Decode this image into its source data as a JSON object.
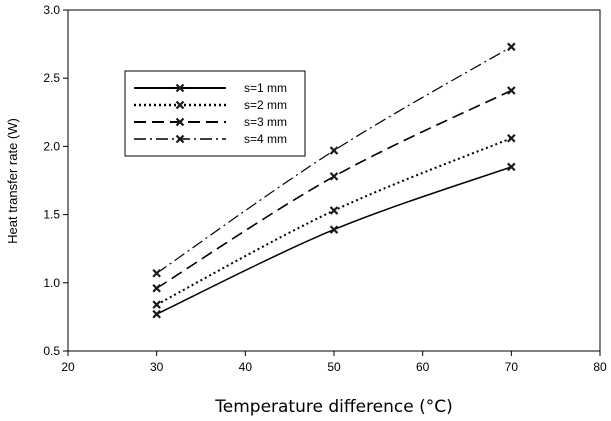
{
  "chart_data": {
    "type": "line",
    "title": "",
    "xlabel": "Temperature difference (°C)",
    "ylabel": "Heat transfer rate (W)",
    "xlim": [
      20,
      80
    ],
    "ylim": [
      0.5,
      3.0
    ],
    "xticks": [
      20,
      30,
      40,
      50,
      60,
      70,
      80
    ],
    "yticks": [
      0.5,
      1.0,
      1.5,
      2.0,
      2.5,
      3.0
    ],
    "xtick_labels": [
      "20",
      "30",
      "40",
      "50",
      "60",
      "70",
      "80"
    ],
    "ytick_labels": [
      "0.5",
      "1.0",
      "1.5",
      "2.0",
      "2.5",
      "3.0"
    ],
    "grid": false,
    "legend_position": "top-left",
    "marker": "x",
    "x": [
      30,
      50,
      70
    ],
    "series": [
      {
        "name": "s=1 mm",
        "values": [
          0.77,
          1.39,
          1.85
        ],
        "dash": "solid"
      },
      {
        "name": "s=2 mm",
        "values": [
          0.84,
          1.53,
          2.06
        ],
        "dash": "dotted"
      },
      {
        "name": "s=3 mm",
        "values": [
          0.96,
          1.78,
          2.41
        ],
        "dash": "dashed"
      },
      {
        "name": "s=4 mm",
        "values": [
          1.07,
          1.97,
          2.73
        ],
        "dash": "dashdot"
      }
    ],
    "colors": {
      "line": "#000000",
      "marker": "#1a1a1a",
      "background": "#ffffff"
    }
  }
}
